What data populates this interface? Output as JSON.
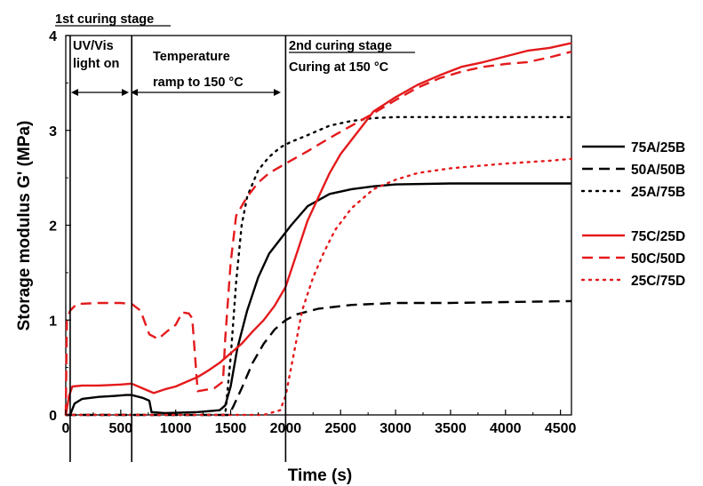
{
  "chart_data": {
    "type": "line",
    "title": "",
    "xlabel": "Time (s)",
    "ylabel": "Storage modulus G' (MPa)",
    "xlim": [
      0,
      4600
    ],
    "ylim": [
      0,
      4
    ],
    "x_ticks": [
      0,
      500,
      1000,
      1500,
      2000,
      2500,
      3000,
      3500,
      4000,
      4500
    ],
    "y_ticks": [
      0,
      1,
      2,
      3,
      4
    ],
    "grid": false,
    "legend_position": "right",
    "annotations": {
      "stage1": "1st curing stage",
      "uv_line1": "UV/Vis",
      "uv_line2": "light on",
      "ramp_line1": "Temperature",
      "ramp_line2": "ramp to 150 °C",
      "stage2": "2nd curing stage",
      "curing": "Curing at 150 °C"
    },
    "stage_lines_x": [
      40,
      600,
      2000
    ],
    "series": [
      {
        "name": "75A/25B",
        "color": "#000000",
        "dash": "solid",
        "points": [
          [
            0,
            0
          ],
          [
            40,
            0
          ],
          [
            80,
            0.12
          ],
          [
            150,
            0.17
          ],
          [
            300,
            0.19
          ],
          [
            450,
            0.2
          ],
          [
            550,
            0.21
          ],
          [
            600,
            0.21
          ],
          [
            700,
            0.18
          ],
          [
            760,
            0.15
          ],
          [
            780,
            0.03
          ],
          [
            900,
            0.02
          ],
          [
            1200,
            0.03
          ],
          [
            1400,
            0.05
          ],
          [
            1450,
            0.1
          ],
          [
            1500,
            0.3
          ],
          [
            1560,
            0.7
          ],
          [
            1650,
            1.1
          ],
          [
            1750,
            1.45
          ],
          [
            1850,
            1.7
          ],
          [
            1950,
            1.85
          ],
          [
            2050,
            2.0
          ],
          [
            2200,
            2.2
          ],
          [
            2400,
            2.33
          ],
          [
            2600,
            2.38
          ],
          [
            2800,
            2.41
          ],
          [
            3000,
            2.43
          ],
          [
            3500,
            2.44
          ],
          [
            4000,
            2.44
          ],
          [
            4600,
            2.44
          ]
        ]
      },
      {
        "name": "50A/50B",
        "color": "#000000",
        "dash": "dash",
        "points": [
          [
            0,
            0
          ],
          [
            1480,
            0
          ],
          [
            1520,
            0.08
          ],
          [
            1600,
            0.28
          ],
          [
            1700,
            0.55
          ],
          [
            1800,
            0.75
          ],
          [
            1900,
            0.9
          ],
          [
            1980,
            0.98
          ],
          [
            2000,
            1.0
          ],
          [
            2100,
            1.06
          ],
          [
            2300,
            1.12
          ],
          [
            2600,
            1.16
          ],
          [
            3000,
            1.18
          ],
          [
            3500,
            1.18
          ],
          [
            4000,
            1.19
          ],
          [
            4600,
            1.2
          ]
        ]
      },
      {
        "name": "25A/75B",
        "color": "#000000",
        "dash": "dot",
        "points": [
          [
            0,
            0
          ],
          [
            1450,
            0
          ],
          [
            1500,
            0.6
          ],
          [
            1550,
            1.4
          ],
          [
            1600,
            2.0
          ],
          [
            1650,
            2.3
          ],
          [
            1750,
            2.58
          ],
          [
            1850,
            2.72
          ],
          [
            1950,
            2.82
          ],
          [
            2050,
            2.88
          ],
          [
            2200,
            2.95
          ],
          [
            2400,
            3.05
          ],
          [
            2600,
            3.1
          ],
          [
            2800,
            3.13
          ],
          [
            3000,
            3.14
          ],
          [
            3500,
            3.14
          ],
          [
            4000,
            3.14
          ],
          [
            4600,
            3.14
          ]
        ]
      },
      {
        "name": "75C/25D",
        "color": "#e41a1c",
        "dash": "solid",
        "points": [
          [
            0,
            0
          ],
          [
            30,
            0.2
          ],
          [
            60,
            0.3
          ],
          [
            150,
            0.31
          ],
          [
            300,
            0.31
          ],
          [
            500,
            0.32
          ],
          [
            600,
            0.33
          ],
          [
            700,
            0.28
          ],
          [
            800,
            0.23
          ],
          [
            900,
            0.27
          ],
          [
            1000,
            0.3
          ],
          [
            1100,
            0.35
          ],
          [
            1200,
            0.4
          ],
          [
            1300,
            0.47
          ],
          [
            1400,
            0.55
          ],
          [
            1500,
            0.65
          ],
          [
            1600,
            0.75
          ],
          [
            1700,
            0.88
          ],
          [
            1800,
            1.0
          ],
          [
            1900,
            1.15
          ],
          [
            2000,
            1.35
          ],
          [
            2100,
            1.7
          ],
          [
            2200,
            2.05
          ],
          [
            2300,
            2.3
          ],
          [
            2400,
            2.55
          ],
          [
            2500,
            2.75
          ],
          [
            2600,
            2.9
          ],
          [
            2700,
            3.05
          ],
          [
            2800,
            3.2
          ],
          [
            3000,
            3.35
          ],
          [
            3200,
            3.48
          ],
          [
            3400,
            3.58
          ],
          [
            3600,
            3.67
          ],
          [
            3800,
            3.72
          ],
          [
            4000,
            3.78
          ],
          [
            4200,
            3.84
          ],
          [
            4400,
            3.87
          ],
          [
            4600,
            3.92
          ]
        ]
      },
      {
        "name": "50C/50D",
        "color": "#e41a1c",
        "dash": "dash",
        "points": [
          [
            0,
            0
          ],
          [
            10,
            1.0
          ],
          [
            40,
            1.1
          ],
          [
            100,
            1.17
          ],
          [
            300,
            1.18
          ],
          [
            500,
            1.18
          ],
          [
            600,
            1.17
          ],
          [
            680,
            1.1
          ],
          [
            760,
            0.85
          ],
          [
            840,
            0.8
          ],
          [
            920,
            0.88
          ],
          [
            1000,
            0.95
          ],
          [
            1060,
            1.08
          ],
          [
            1120,
            1.07
          ],
          [
            1150,
            1.02
          ],
          [
            1200,
            0.25
          ],
          [
            1350,
            0.28
          ],
          [
            1430,
            0.35
          ],
          [
            1450,
            0.8
          ],
          [
            1500,
            1.6
          ],
          [
            1550,
            2.1
          ],
          [
            1650,
            2.3
          ],
          [
            1750,
            2.45
          ],
          [
            1850,
            2.55
          ],
          [
            2000,
            2.65
          ],
          [
            2200,
            2.78
          ],
          [
            2400,
            2.92
          ],
          [
            2600,
            3.05
          ],
          [
            2800,
            3.18
          ],
          [
            3000,
            3.32
          ],
          [
            3200,
            3.45
          ],
          [
            3400,
            3.55
          ],
          [
            3600,
            3.62
          ],
          [
            3800,
            3.67
          ],
          [
            4000,
            3.7
          ],
          [
            4200,
            3.72
          ],
          [
            4400,
            3.77
          ],
          [
            4600,
            3.83
          ]
        ]
      },
      {
        "name": "25C/75D",
        "color": "#e41a1c",
        "dash": "dot",
        "points": [
          [
            0,
            0
          ],
          [
            1800,
            0
          ],
          [
            1950,
            0.05
          ],
          [
            2000,
            0.2
          ],
          [
            2050,
            0.5
          ],
          [
            2100,
            0.8
          ],
          [
            2150,
            1.1
          ],
          [
            2250,
            1.45
          ],
          [
            2350,
            1.72
          ],
          [
            2450,
            1.95
          ],
          [
            2600,
            2.18
          ],
          [
            2800,
            2.38
          ],
          [
            3000,
            2.48
          ],
          [
            3200,
            2.55
          ],
          [
            3500,
            2.6
          ],
          [
            4000,
            2.65
          ],
          [
            4400,
            2.68
          ],
          [
            4600,
            2.7
          ]
        ]
      }
    ]
  }
}
